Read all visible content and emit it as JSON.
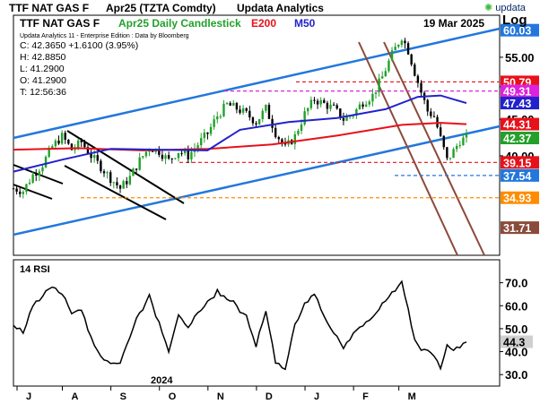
{
  "header": {
    "instrument": "TTF NAT GAS F",
    "contract": "Apr25 (TZTA Comdty)",
    "publisher": "Updata Analytics",
    "logo_text": "updata"
  },
  "subheader": {
    "instrument": "TTF NAT GAS F",
    "series_label": "Apr25 Daily Candlestick",
    "ema_label": "E200",
    "ma_label": "M50",
    "date": "19 Mar 2025",
    "scale": "Log"
  },
  "info_box": {
    "edition": "Updata Analytics 11 - Enterprise Edition : Data by Bloomberg",
    "close": "C: 42.3650  +1.6100 (3.95%)",
    "high": "H: 42.8850",
    "low": "L: 41.2900",
    "open": "O: 41.2900",
    "time": "T: 12:56:36"
  },
  "colors": {
    "up_candle": "#22a02a",
    "down_candle": "#000000",
    "ema200": "#e8101a",
    "ma50": "#2222cc",
    "channel": "#2277dd",
    "down_channel": "#8b4a3a",
    "magenta": "#dd22dd",
    "orange": "#ff8c00"
  },
  "chart_data": [
    {
      "type": "candlestick",
      "title": "TTF NAT GAS F Apr25 Daily Candlestick",
      "scale": "log",
      "ylim": [
        29,
        63
      ],
      "x_months": [
        "J",
        "A",
        "S",
        "O",
        "N",
        "D",
        "J",
        "F",
        "M"
      ],
      "year_label": "2024",
      "y_ticks": [
        40,
        45,
        50,
        55
      ],
      "price_tags": [
        {
          "value": "60.03",
          "color": "#2277dd"
        },
        {
          "value": "50.79",
          "color": "#e8101a"
        },
        {
          "value": "49.31",
          "color": "#dd22dd"
        },
        {
          "value": "47.43",
          "color": "#2222cc"
        },
        {
          "value": "44.31",
          "color": "#e8101a"
        },
        {
          "value": "42.37",
          "color": "#22a02a"
        },
        {
          "value": "39.15",
          "color": "#e8101a"
        },
        {
          "value": "37.54",
          "color": "#2277dd"
        },
        {
          "value": "34.93",
          "color": "#ff8c00"
        },
        {
          "value": "31.71",
          "color": "#8b4a3a"
        }
      ],
      "ohlc_last": {
        "open": 41.29,
        "high": 42.885,
        "low": 41.29,
        "close": 42.365
      },
      "close_path": [
        [
          0,
          36.0
        ],
        [
          6,
          35.7
        ],
        [
          12,
          37.6
        ],
        [
          18,
          38.9
        ],
        [
          24,
          41.2
        ],
        [
          30,
          42.6
        ],
        [
          36,
          40.8
        ],
        [
          42,
          41.8
        ],
        [
          48,
          40.0
        ],
        [
          54,
          38.6
        ],
        [
          60,
          37.2
        ],
        [
          66,
          36.0
        ],
        [
          72,
          37.3
        ],
        [
          78,
          39.4
        ],
        [
          84,
          41.1
        ],
        [
          90,
          40.6
        ],
        [
          96,
          39.4
        ],
        [
          102,
          40.6
        ],
        [
          108,
          40.0
        ],
        [
          114,
          41.5
        ],
        [
          120,
          43.0
        ],
        [
          126,
          45.5
        ],
        [
          132,
          47.2
        ],
        [
          138,
          46.6
        ],
        [
          144,
          45.8
        ],
        [
          150,
          44.6
        ],
        [
          156,
          46.6
        ],
        [
          162,
          43.1
        ],
        [
          168,
          41.0
        ],
        [
          174,
          42.6
        ],
        [
          180,
          45.8
        ],
        [
          186,
          48.0
        ],
        [
          192,
          47.3
        ],
        [
          198,
          46.6
        ],
        [
          204,
          45.0
        ],
        [
          210,
          45.8
        ],
        [
          216,
          47.6
        ],
        [
          222,
          48.6
        ],
        [
          228,
          51.6
        ],
        [
          234,
          55.5
        ],
        [
          240,
          58.8
        ],
        [
          244,
          56.2
        ],
        [
          248,
          52.4
        ],
        [
          252,
          49.1
        ],
        [
          256,
          46.2
        ],
        [
          260,
          45.4
        ],
        [
          264,
          42.3
        ],
        [
          268,
          39.4
        ],
        [
          272,
          40.6
        ],
        [
          276,
          42.0
        ],
        [
          280,
          42.37
        ]
      ],
      "ema200": [
        [
          0,
          40.8
        ],
        [
          40,
          41.0
        ],
        [
          80,
          40.7
        ],
        [
          120,
          40.9
        ],
        [
          160,
          41.5
        ],
        [
          200,
          42.7
        ],
        [
          240,
          44.2
        ],
        [
          264,
          44.5
        ],
        [
          280,
          44.31
        ]
      ],
      "ma50": [
        [
          0,
          38.0
        ],
        [
          30,
          39.5
        ],
        [
          60,
          40.9
        ],
        [
          90,
          40.8
        ],
        [
          120,
          40.7
        ],
        [
          140,
          43.5
        ],
        [
          170,
          44.6
        ],
        [
          200,
          45.2
        ],
        [
          230,
          46.5
        ],
        [
          250,
          48.4
        ],
        [
          264,
          48.6
        ],
        [
          280,
          47.43
        ]
      ],
      "horizontal_levels": [
        {
          "value": 50.79,
          "color": "#e8101a"
        },
        {
          "value": 49.31,
          "color": "#dd22dd"
        },
        {
          "value": 39.15,
          "color": "#e8101a"
        },
        {
          "value": 37.54,
          "color": "#2277dd"
        },
        {
          "value": 34.93,
          "color": "#ff8c00"
        }
      ]
    },
    {
      "type": "line",
      "title": "14 RSI",
      "ylim": [
        25,
        80
      ],
      "y_ticks": [
        30.0,
        40.0,
        50.0,
        60.0,
        70.0
      ],
      "last_value": "44.3",
      "values": [
        [
          0,
          51
        ],
        [
          6,
          48
        ],
        [
          12,
          61
        ],
        [
          18,
          64
        ],
        [
          24,
          69
        ],
        [
          30,
          65
        ],
        [
          36,
          57
        ],
        [
          42,
          58
        ],
        [
          48,
          45
        ],
        [
          54,
          38
        ],
        [
          60,
          35
        ],
        [
          66,
          35
        ],
        [
          72,
          47
        ],
        [
          78,
          57
        ],
        [
          84,
          64
        ],
        [
          90,
          53
        ],
        [
          96,
          40
        ],
        [
          102,
          56
        ],
        [
          108,
          50
        ],
        [
          114,
          57
        ],
        [
          120,
          61
        ],
        [
          126,
          67
        ],
        [
          132,
          63
        ],
        [
          138,
          60
        ],
        [
          144,
          55
        ],
        [
          150,
          42
        ],
        [
          156,
          58
        ],
        [
          162,
          35
        ],
        [
          168,
          32
        ],
        [
          174,
          52
        ],
        [
          180,
          60
        ],
        [
          186,
          65
        ],
        [
          192,
          55
        ],
        [
          198,
          48
        ],
        [
          204,
          42
        ],
        [
          210,
          48
        ],
        [
          216,
          52
        ],
        [
          222,
          55
        ],
        [
          228,
          60
        ],
        [
          234,
          66
        ],
        [
          240,
          70
        ],
        [
          244,
          58
        ],
        [
          248,
          44
        ],
        [
          252,
          42
        ],
        [
          256,
          40
        ],
        [
          260,
          39
        ],
        [
          264,
          33
        ],
        [
          268,
          42
        ],
        [
          272,
          41
        ],
        [
          276,
          43
        ],
        [
          280,
          44.3
        ]
      ]
    }
  ]
}
